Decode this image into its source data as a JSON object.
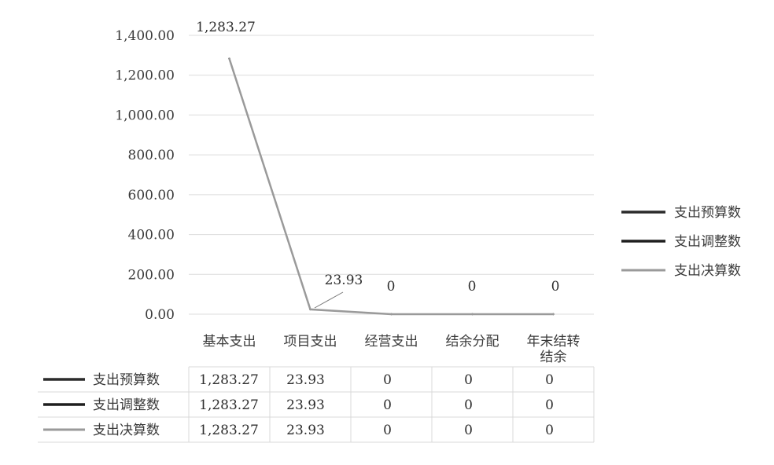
{
  "chart_data": {
    "type": "line",
    "categories": [
      "基本支出",
      "项目支出",
      "经营支出",
      "结余分配",
      "年末结转结余"
    ],
    "category_lines": [
      [
        "基本支出"
      ],
      [
        "项目支出"
      ],
      [
        "经营支出"
      ],
      [
        "结余分配"
      ],
      [
        "年末结转",
        "结余"
      ]
    ],
    "ylim": [
      0,
      1400
    ],
    "yticks": [
      "0.00",
      "200.00",
      "400.00",
      "600.00",
      "800.00",
      "1,000.00",
      "1,200.00",
      "1,400.00"
    ],
    "series": [
      {
        "name": "支出预算数",
        "values": [
          1283.27,
          23.93,
          0,
          0,
          0
        ],
        "color": "#2b2b2b"
      },
      {
        "name": "支出调整数",
        "values": [
          1283.27,
          23.93,
          0,
          0,
          0
        ],
        "color": "#1e1e1e"
      },
      {
        "name": "支出决算数",
        "values": [
          1283.27,
          23.93,
          0,
          0,
          0
        ],
        "color": "#9a9a9a"
      }
    ],
    "data_labels": [
      "1,283.27",
      "23.93",
      "0",
      "0",
      "0"
    ],
    "table_rows": [
      {
        "name": "支出预算数",
        "cells": [
          "1,283.27",
          "23.93",
          "0",
          "0",
          "0"
        ]
      },
      {
        "name": "支出调整数",
        "cells": [
          "1,283.27",
          "23.93",
          "0",
          "0",
          "0"
        ]
      },
      {
        "name": "支出决算数",
        "cells": [
          "1,283.27",
          "23.93",
          "0",
          "0",
          "0"
        ]
      }
    ],
    "legend_position": "right",
    "grid": true
  }
}
